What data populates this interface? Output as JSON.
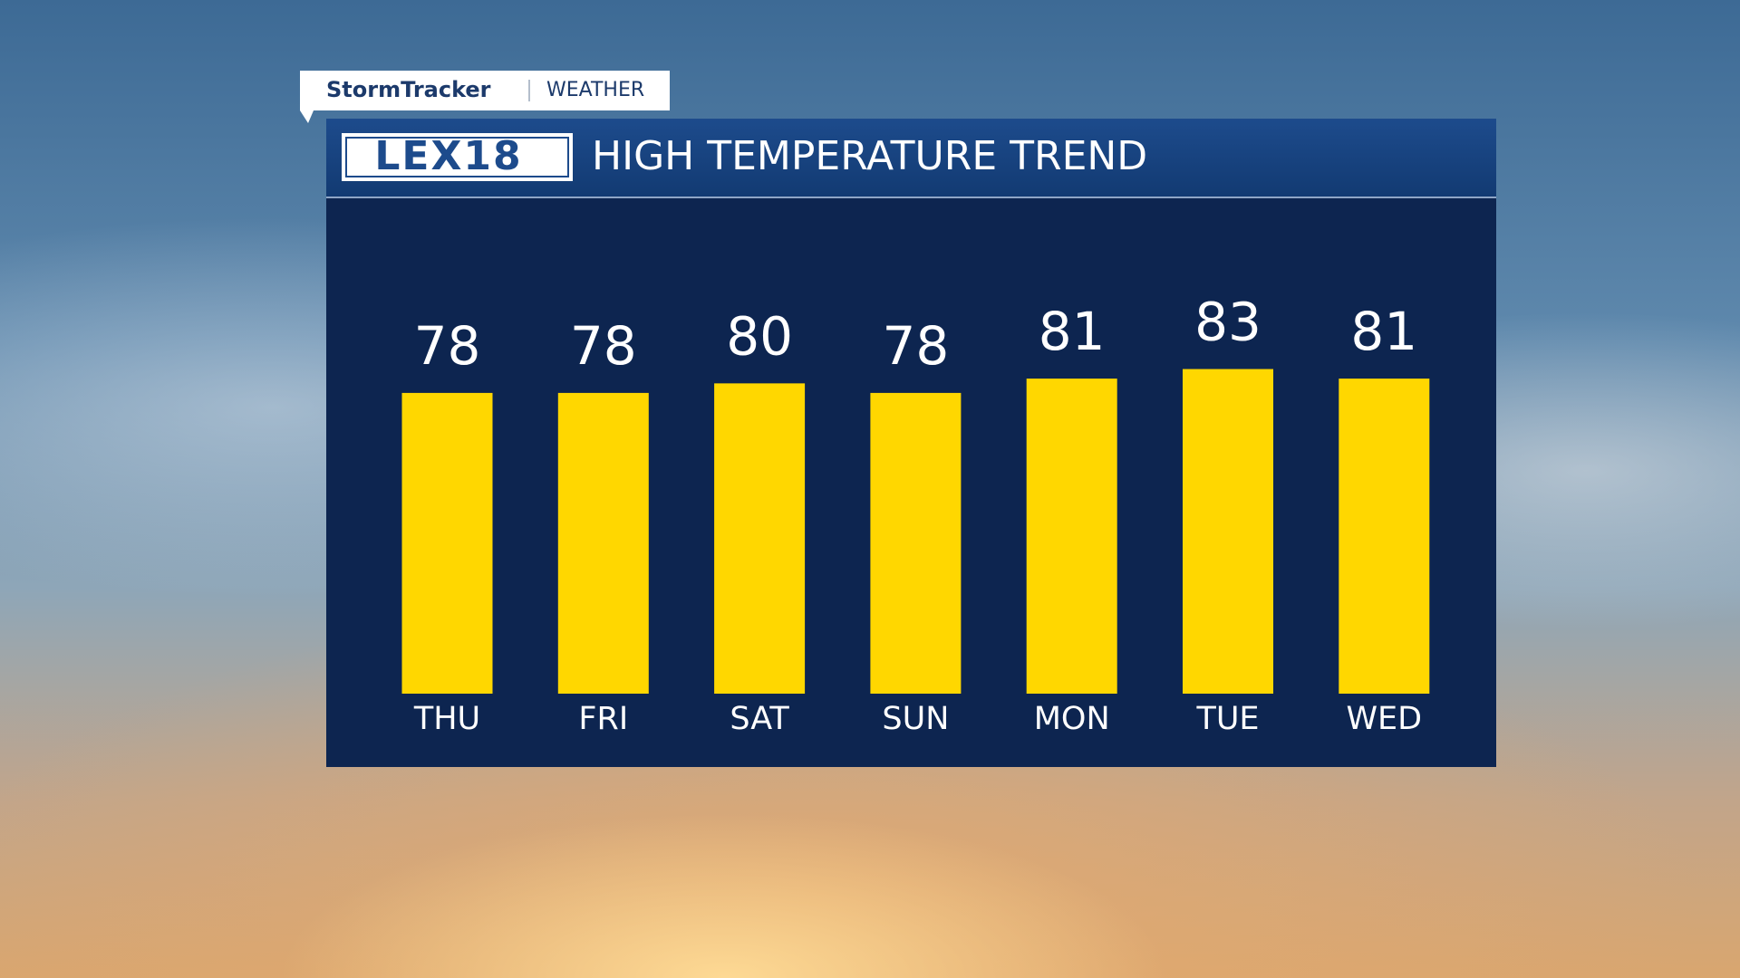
{
  "chart_data": {
    "type": "bar",
    "brand": "StormTracker",
    "section": "WEATHER",
    "logo": "LEX18",
    "title": "HIGH TEMPERATURE TREND",
    "categories": [
      "THU",
      "FRI",
      "SAT",
      "SUN",
      "MON",
      "TUE",
      "WED"
    ],
    "values": [
      78,
      78,
      80,
      78,
      81,
      83,
      81
    ],
    "color": "#ffd700",
    "ylim": [
      15,
      85
    ]
  }
}
